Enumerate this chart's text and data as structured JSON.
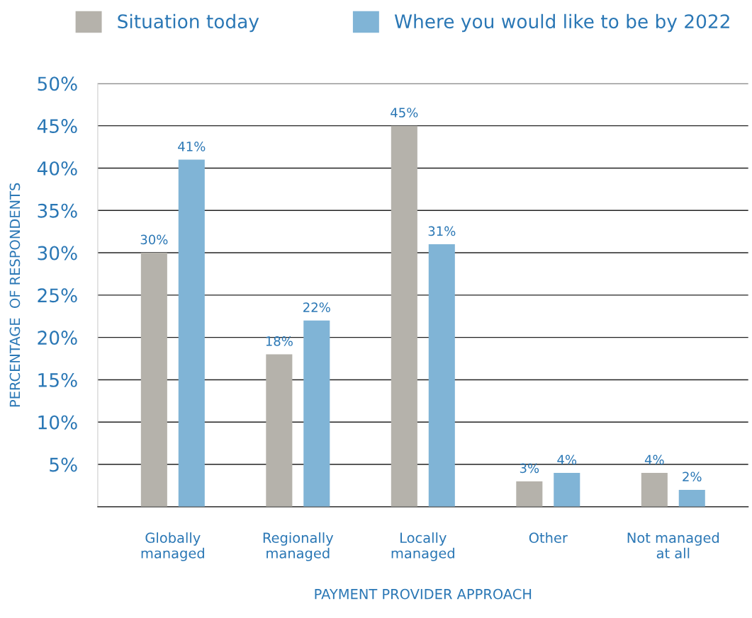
{
  "chart_data": {
    "type": "bar",
    "xlabel": "PAYMENT PROVIDER APPROACH",
    "ylabel": "PERCENTAGE  OF RESPONDENTS",
    "categories": [
      "Globally\nmanaged",
      "Regionally\nmanaged",
      "Locally\nmanaged",
      "Other",
      "Not managed\nat all"
    ],
    "series": [
      {
        "name": "Situation today",
        "color": "#b5b2ab",
        "values": [
          30,
          18,
          45,
          3,
          4
        ],
        "value_labels": [
          "30%",
          "18%",
          "45%",
          "3%",
          "4%"
        ]
      },
      {
        "name": "Where you would like to be by 2022",
        "color": "#80b4d6",
        "values": [
          41,
          22,
          31,
          4,
          2
        ],
        "value_labels": [
          "41%",
          "22%",
          "31%",
          "4%",
          "2%"
        ]
      }
    ],
    "ylim": [
      0,
      50
    ],
    "yticks": [
      {
        "value": 5,
        "label": "5%"
      },
      {
        "value": 10,
        "label": "10%"
      },
      {
        "value": 15,
        "label": "15%"
      },
      {
        "value": 20,
        "label": "20%"
      },
      {
        "value": 25,
        "label": "25%"
      },
      {
        "value": 30,
        "label": "30%"
      },
      {
        "value": 35,
        "label": "35%"
      },
      {
        "value": 40,
        "label": "40%"
      },
      {
        "value": 45,
        "label": "45%"
      },
      {
        "value": 50,
        "label": "50%"
      }
    ],
    "grid": "y",
    "legend": "top"
  }
}
